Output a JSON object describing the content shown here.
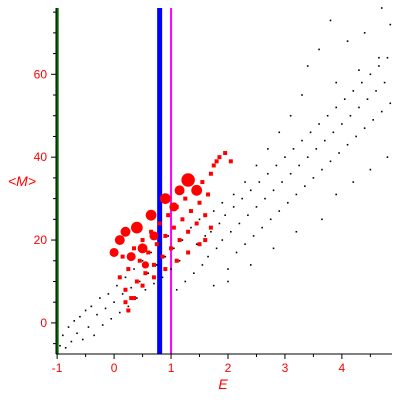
{
  "chart_data": {
    "type": "scatter",
    "title": "",
    "xlabel": "E",
    "ylabel": "<M>",
    "xlim": [
      -1.02,
      4.88
    ],
    "ylim": [
      -7.5,
      76
    ],
    "xticks": [
      -1,
      0,
      1,
      2,
      3,
      4
    ],
    "yticks": [
      0,
      20,
      40,
      60
    ],
    "grid": false,
    "legend": "none",
    "vertical_lines": [
      {
        "x": -1.0,
        "color": "#006400"
      },
      {
        "x": 0.8,
        "color": "#0000ff"
      },
      {
        "x": 1.0,
        "color": "#ff00ff"
      }
    ],
    "series": [
      {
        "color": "#000000",
        "marker": "dot",
        "points": [
          [
            -0.95,
            -5.5
          ],
          [
            -0.9,
            -3.0
          ],
          [
            -0.85,
            -6.0
          ],
          [
            -0.8,
            -1.0
          ],
          [
            -0.75,
            -4.5
          ],
          [
            -0.7,
            0.5
          ],
          [
            -0.65,
            -2.5
          ],
          [
            -0.6,
            1.5
          ],
          [
            -0.55,
            -4.0
          ],
          [
            -0.5,
            3.0
          ],
          [
            -0.45,
            -1.0
          ],
          [
            -0.4,
            4.0
          ],
          [
            -0.35,
            -3.0
          ],
          [
            -0.3,
            2.0
          ],
          [
            -0.25,
            6.0
          ],
          [
            -0.2,
            -0.5
          ],
          [
            -0.15,
            3.5
          ],
          [
            -0.1,
            7.0
          ],
          [
            -0.05,
            1.0
          ],
          [
            0.0,
            5.0
          ],
          [
            0.05,
            9.0
          ],
          [
            0.1,
            2.5
          ],
          [
            0.15,
            7.0
          ],
          [
            0.2,
            11.0
          ],
          [
            0.25,
            4.0
          ],
          [
            0.3,
            8.5
          ],
          [
            0.35,
            13.0
          ],
          [
            0.4,
            6.0
          ],
          [
            0.45,
            10.0
          ],
          [
            0.5,
            15.0
          ],
          [
            0.55,
            8.0
          ],
          [
            0.6,
            12.0
          ],
          [
            0.65,
            17.0
          ],
          [
            0.7,
            9.5
          ],
          [
            0.75,
            14.0
          ],
          [
            0.8,
            19.0
          ],
          [
            0.85,
            11.0
          ],
          [
            0.9,
            16.0
          ],
          [
            0.95,
            21.0
          ],
          [
            1.0,
            13.0
          ],
          [
            1.05,
            18.0
          ],
          [
            1.1,
            8.0
          ],
          [
            1.15,
            15.0
          ],
          [
            1.2,
            20.0
          ],
          [
            1.25,
            10.0
          ],
          [
            1.3,
            17.0
          ],
          [
            1.35,
            23.0
          ],
          [
            1.4,
            12.0
          ],
          [
            1.45,
            19.0
          ],
          [
            1.5,
            25.0
          ],
          [
            1.55,
            14.0
          ],
          [
            1.6,
            21.0
          ],
          [
            1.65,
            16.0
          ],
          [
            1.7,
            22.0
          ],
          [
            1.75,
            27.0
          ],
          [
            1.8,
            18.0
          ],
          [
            1.85,
            24.0
          ],
          [
            1.9,
            20.0
          ],
          [
            1.95,
            26.0
          ],
          [
            2.0,
            13.0
          ],
          [
            2.05,
            22.0
          ],
          [
            2.1,
            28.0
          ],
          [
            2.15,
            17.0
          ],
          [
            2.2,
            24.0
          ],
          [
            2.25,
            30.0
          ],
          [
            2.3,
            19.0
          ],
          [
            2.35,
            26.0
          ],
          [
            2.4,
            32.0
          ],
          [
            2.45,
            21.0
          ],
          [
            2.5,
            28.0
          ],
          [
            2.55,
            34.0
          ],
          [
            2.6,
            23.0
          ],
          [
            2.65,
            30.0
          ],
          [
            2.7,
            36.0
          ],
          [
            2.75,
            25.0
          ],
          [
            2.8,
            32.0
          ],
          [
            2.85,
            38.0
          ],
          [
            2.9,
            27.0
          ],
          [
            2.95,
            34.0
          ],
          [
            3.0,
            40.0
          ],
          [
            3.05,
            29.0
          ],
          [
            3.1,
            36.0
          ],
          [
            3.15,
            42.0
          ],
          [
            3.2,
            31.0
          ],
          [
            3.25,
            38.0
          ],
          [
            3.3,
            44.0
          ],
          [
            3.35,
            33.0
          ],
          [
            3.4,
            40.0
          ],
          [
            3.45,
            46.0
          ],
          [
            3.5,
            35.0
          ],
          [
            3.55,
            42.0
          ],
          [
            3.6,
            48.0
          ],
          [
            3.65,
            37.0
          ],
          [
            3.7,
            44.0
          ],
          [
            3.75,
            50.0
          ],
          [
            3.8,
            39.0
          ],
          [
            3.85,
            46.0
          ],
          [
            3.9,
            52.0
          ],
          [
            3.95,
            41.0
          ],
          [
            4.0,
            48.0
          ],
          [
            4.05,
            54.0
          ],
          [
            4.1,
            43.0
          ],
          [
            4.15,
            50.0
          ],
          [
            4.2,
            56.0
          ],
          [
            4.25,
            45.0
          ],
          [
            4.3,
            52.0
          ],
          [
            4.35,
            58.0
          ],
          [
            4.4,
            47.0
          ],
          [
            4.45,
            54.0
          ],
          [
            4.5,
            60.0
          ],
          [
            4.55,
            49.0
          ],
          [
            4.6,
            56.0
          ],
          [
            4.65,
            62.0
          ],
          [
            4.7,
            51.0
          ],
          [
            4.75,
            58.0
          ],
          [
            4.8,
            64.0
          ],
          [
            4.85,
            53.0
          ],
          [
            3.4,
            62.0
          ],
          [
            3.6,
            66.0
          ],
          [
            4.1,
            68.0
          ],
          [
            4.4,
            70.0
          ],
          [
            4.65,
            64.0
          ],
          [
            4.85,
            72.0
          ],
          [
            4.3,
            61.0
          ],
          [
            3.9,
            58.0
          ],
          [
            3.3,
            55.0
          ],
          [
            3.1,
            50.0
          ],
          [
            2.9,
            46.0
          ],
          [
            2.7,
            42.0
          ],
          [
            2.5,
            38.0
          ],
          [
            2.3,
            34.0
          ],
          [
            2.1,
            31.0
          ],
          [
            1.9,
            29.0
          ],
          [
            3.65,
            25.0
          ],
          [
            3.9,
            31.0
          ],
          [
            4.2,
            34.0
          ],
          [
            4.5,
            37.0
          ],
          [
            4.8,
            40.0
          ],
          [
            3.2,
            22.0
          ],
          [
            2.8,
            18.0
          ],
          [
            2.4,
            14.0
          ],
          [
            2.0,
            10.0
          ],
          [
            1.75,
            9.0
          ],
          [
            3.8,
            73.0
          ],
          [
            4.7,
            76.0
          ]
        ]
      },
      {
        "color": "#ff0000",
        "marker": "square",
        "points": [
          [
            0.1,
            11.0
          ],
          [
            0.15,
            16.0
          ],
          [
            0.2,
            8.0
          ],
          [
            0.25,
            13.0
          ],
          [
            0.3,
            6.0
          ],
          [
            0.35,
            18.0
          ],
          [
            0.4,
            10.0
          ],
          [
            0.45,
            15.0
          ],
          [
            0.5,
            20.0
          ],
          [
            0.55,
            12.0
          ],
          [
            0.6,
            17.0
          ],
          [
            0.65,
            22.0
          ],
          [
            0.7,
            14.0
          ],
          [
            0.75,
            19.0
          ],
          [
            0.8,
            24.0
          ],
          [
            0.85,
            16.0
          ],
          [
            0.9,
            21.0
          ],
          [
            0.95,
            26.0
          ],
          [
            1.0,
            18.0
          ],
          [
            1.05,
            23.0
          ],
          [
            1.1,
            28.0
          ],
          [
            1.15,
            20.0
          ],
          [
            1.2,
            25.0
          ],
          [
            1.25,
            30.0
          ],
          [
            1.3,
            22.0
          ],
          [
            1.35,
            27.0
          ],
          [
            1.4,
            32.0
          ],
          [
            1.45,
            24.0
          ],
          [
            1.5,
            29.0
          ],
          [
            1.55,
            34.0
          ],
          [
            1.6,
            26.0
          ],
          [
            1.65,
            31.0
          ],
          [
            1.7,
            36.0
          ],
          [
            1.75,
            38.0
          ],
          [
            1.8,
            39.0
          ],
          [
            1.85,
            40.0
          ],
          [
            1.95,
            41.0
          ],
          [
            2.05,
            39.0
          ],
          [
            0.2,
            5.0
          ],
          [
            0.5,
            9.0
          ],
          [
            0.7,
            11.0
          ],
          [
            0.9,
            13.0
          ],
          [
            1.1,
            15.0
          ],
          [
            1.3,
            17.0
          ],
          [
            1.5,
            19.0
          ],
          [
            0.25,
            3.0
          ],
          [
            0.35,
            6.0
          ],
          [
            1.6,
            20.0
          ],
          [
            1.7,
            23.0
          ]
        ]
      },
      {
        "color": "#ff0000",
        "marker": "circle",
        "points": [
          [
            0.0,
            17.0,
            1.0
          ],
          [
            0.1,
            20.0,
            1.1
          ],
          [
            0.2,
            22.0,
            1.1
          ],
          [
            0.3,
            16.0,
            1.0
          ],
          [
            0.4,
            23.0,
            1.3
          ],
          [
            0.5,
            18.0,
            1.1
          ],
          [
            0.65,
            26.0,
            1.2
          ],
          [
            0.7,
            21.0,
            1.0
          ],
          [
            0.9,
            30.0,
            1.2
          ],
          [
            1.05,
            28.0,
            1.0
          ],
          [
            1.15,
            32.0,
            1.1
          ],
          [
            1.3,
            34.5,
            1.5
          ],
          [
            1.45,
            32.0,
            1.2
          ],
          [
            0.55,
            14.0,
            0.8
          ]
        ]
      }
    ]
  }
}
